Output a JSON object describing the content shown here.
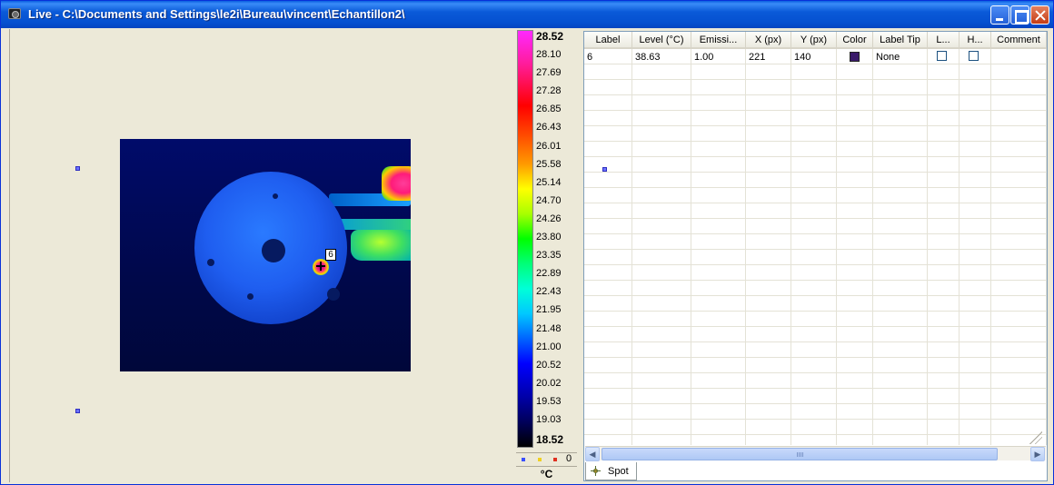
{
  "window": {
    "title": "Live - C:\\Documents and Settings\\le2i\\Bureau\\vincent\\Echantillon2\\"
  },
  "thermal_view": {
    "spot_label": "6"
  },
  "scale": {
    "max": "28.52",
    "ticks": [
      "28.10",
      "27.69",
      "27.28",
      "26.85",
      "26.43",
      "26.01",
      "25.58",
      "25.14",
      "24.70",
      "24.26",
      "23.80",
      "23.35",
      "22.89",
      "22.43",
      "21.95",
      "21.48",
      "21.00",
      "20.52",
      "20.02",
      "19.53",
      "19.03"
    ],
    "min": "18.52",
    "legend_count": "0",
    "unit": "°C",
    "palette_colors": [
      "#ff28ff",
      "#ff0000",
      "#ffff00",
      "#00ff00",
      "#00ffd8",
      "#0000ff",
      "#000000"
    ]
  },
  "table": {
    "headers": [
      "Label",
      "Level (°C)",
      "Emissi...",
      "X (px)",
      "Y (px)",
      "Color",
      "Label Tip",
      "L...",
      "H...",
      "Comment"
    ],
    "rows": [
      {
        "label": "6",
        "level": "38.63",
        "emissivity": "1.00",
        "x": "221",
        "y": "140",
        "color": "#3a1a6a",
        "label_tip": "None",
        "l": false,
        "h": false,
        "comment": ""
      }
    ]
  },
  "tabs": [
    {
      "label": "Spot",
      "icon": "spot-crosshair-icon"
    }
  ]
}
